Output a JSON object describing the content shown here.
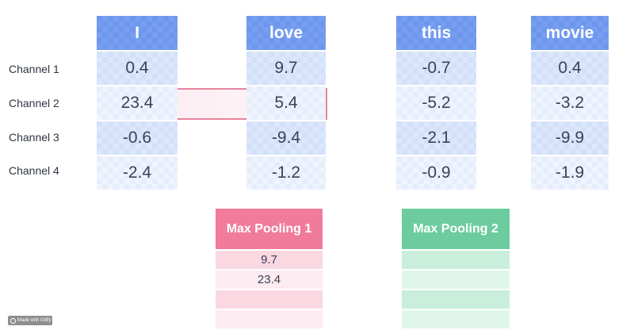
{
  "channels": [
    "Channel 1",
    "Channel 2",
    "Channel 3",
    "Channel 4"
  ],
  "words": [
    {
      "label": "I",
      "values": [
        "0.4",
        "23.4",
        "-0.6",
        "-2.4"
      ]
    },
    {
      "label": "love",
      "values": [
        "9.7",
        "5.4",
        "-9.4",
        "-1.2"
      ]
    },
    {
      "label": "this",
      "values": [
        "-0.7",
        "-5.2",
        "-2.1",
        "-0.9"
      ]
    },
    {
      "label": "movie",
      "values": [
        "0.4",
        "-3.2",
        "-9.9",
        "-1.9"
      ]
    }
  ],
  "pool1": {
    "title": "Max Pooling 1",
    "values": [
      "9.7",
      "23.4",
      "",
      ""
    ]
  },
  "pool2": {
    "title": "Max Pooling 2",
    "values": [
      "",
      "",
      "",
      ""
    ]
  },
  "watermark": "Made with Gliffy",
  "colors": {
    "header_blue": "#6d97ee",
    "highlight_border": "#e7839d",
    "pool1_header": "#f07b9b",
    "pool2_header": "#6ccc9f"
  }
}
